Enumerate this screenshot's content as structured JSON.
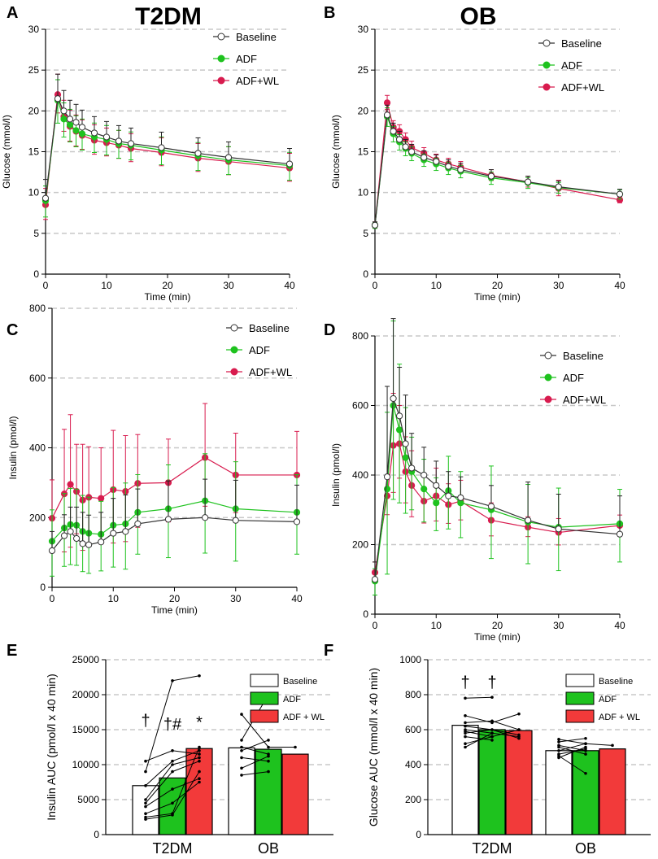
{
  "colors": {
    "baseline": "#ffffff",
    "adf": "#1ec21e",
    "adfwl": "#d81b4e",
    "adfwl_bar": "#f23a3a",
    "grid": "#c8c8c8",
    "axis": "#000000",
    "baseline_err": "#222222",
    "adf_err": "#1ec21e",
    "adfwl_err": "#d81b4e"
  },
  "chart_data": [
    {
      "panel": "A",
      "type": "line",
      "title": "T2DM",
      "xlabel": "Time (min)",
      "ylabel": "Glucose (mmol/l)",
      "xlim": [
        0,
        40
      ],
      "ylim": [
        0,
        30
      ],
      "xticks": [
        "0",
        "10",
        "20",
        "30",
        "40"
      ],
      "yticks": [
        "0",
        "5",
        "10",
        "15",
        "20",
        "25",
        "30"
      ],
      "legend": [
        "Baseline",
        "ADF",
        "ADF+WL"
      ],
      "x": [
        0,
        2,
        3,
        4,
        5,
        6,
        8,
        10,
        12,
        14,
        19,
        25,
        30,
        40
      ],
      "series": [
        {
          "name": "Baseline",
          "values": [
            9.3,
            21.5,
            20.0,
            19.0,
            18.6,
            18.0,
            17.3,
            16.8,
            16.3,
            16.0,
            15.5,
            14.8,
            14.3,
            13.5
          ],
          "err": [
            2.3,
            3.0,
            2.5,
            2.3,
            2.2,
            2.1,
            2.0,
            1.9,
            1.9,
            1.9,
            1.9,
            1.9,
            1.9,
            1.9
          ]
        },
        {
          "name": "ADF",
          "values": [
            9.0,
            21.3,
            19.0,
            18.3,
            17.6,
            17.2,
            16.8,
            16.5,
            16.0,
            15.8,
            15.2,
            14.5,
            14.0,
            13.3
          ],
          "err": [
            2.0,
            2.8,
            2.2,
            2.1,
            2.0,
            2.0,
            1.9,
            1.9,
            1.8,
            1.8,
            1.8,
            1.8,
            1.8,
            1.8
          ]
        },
        {
          "name": "ADF+WL",
          "values": [
            8.5,
            22.0,
            19.3,
            18.1,
            17.5,
            17.0,
            16.4,
            16.1,
            15.8,
            15.4,
            14.9,
            14.2,
            13.8,
            13.0
          ],
          "err": [
            2.0,
            2.5,
            2.0,
            2.0,
            2.0,
            1.9,
            1.9,
            1.8,
            1.8,
            1.8,
            1.8,
            1.8,
            1.8,
            1.8
          ]
        }
      ]
    },
    {
      "panel": "B",
      "type": "line",
      "title": "OB",
      "xlabel": "Time (min)",
      "ylabel": "Glucose (mmol/l)",
      "xlim": [
        0,
        40
      ],
      "ylim": [
        0,
        30
      ],
      "xticks": [
        "0",
        "10",
        "20",
        "30",
        "40"
      ],
      "yticks": [
        "0",
        "5",
        "10",
        "15",
        "20",
        "25",
        "30"
      ],
      "legend": [
        "Baseline",
        "ADF",
        "ADF+WL"
      ],
      "x": [
        0,
        2,
        3,
        4,
        5,
        6,
        8,
        10,
        12,
        14,
        19,
        25,
        30,
        40
      ],
      "series": [
        {
          "name": "Baseline",
          "values": [
            6.0,
            19.5,
            17.5,
            16.5,
            15.6,
            15.0,
            14.3,
            13.8,
            13.2,
            12.8,
            12.0,
            11.3,
            10.7,
            9.8
          ],
          "err": [
            0.4,
            1.2,
            1.0,
            1.0,
            0.9,
            0.9,
            0.8,
            0.8,
            0.8,
            0.8,
            0.8,
            0.7,
            0.7,
            0.6
          ]
        },
        {
          "name": "ADF",
          "values": [
            6.0,
            19.3,
            17.2,
            16.2,
            15.4,
            14.8,
            14.0,
            13.5,
            13.0,
            12.6,
            11.8,
            11.2,
            10.6,
            9.8
          ],
          "err": [
            0.4,
            1.2,
            1.0,
            1.0,
            0.9,
            0.9,
            0.8,
            0.8,
            0.8,
            0.8,
            0.8,
            0.7,
            0.7,
            0.6
          ]
        },
        {
          "name": "ADF+WL",
          "values": [
            6.0,
            21.0,
            18.0,
            17.5,
            16.5,
            15.5,
            14.8,
            14.0,
            13.5,
            13.1,
            12.1,
            11.3,
            10.5,
            9.1
          ],
          "err": [
            0.4,
            0.9,
            0.8,
            0.8,
            0.8,
            0.8,
            0.7,
            0.7,
            0.7,
            0.7,
            0.7,
            0.7,
            1.0,
            0.4
          ]
        }
      ]
    },
    {
      "panel": "C",
      "type": "line",
      "title": "",
      "xlabel": "Time (min)",
      "ylabel": "Insulin (pmol/l)",
      "xlim": [
        0,
        40
      ],
      "ylim": [
        0,
        800
      ],
      "xticks": [
        "0",
        "10",
        "20",
        "30",
        "40"
      ],
      "yticks": [
        "0",
        "200",
        "400",
        "600",
        "800"
      ],
      "legend": [
        "Baseline",
        "ADF",
        "ADF+WL"
      ],
      "x": [
        0,
        2,
        3,
        4,
        5,
        6,
        8,
        10,
        12,
        14,
        19,
        25,
        30,
        40
      ],
      "series": [
        {
          "name": "Baseline",
          "values": [
            105,
            148,
            160,
            140,
            125,
            122,
            130,
            155,
            160,
            182,
            195,
            200,
            192,
            188
          ],
          "err": [
            55,
            60,
            70,
            90,
            90,
            85,
            85,
            100,
            105,
            100,
            110,
            110,
            115,
            105
          ]
        },
        {
          "name": "ADF",
          "values": [
            132,
            170,
            180,
            178,
            160,
            155,
            152,
            178,
            182,
            215,
            225,
            248,
            225,
            215
          ],
          "err": [
            100,
            110,
            115,
            115,
            115,
            115,
            105,
            120,
            130,
            120,
            140,
            150,
            150,
            120
          ]
        },
        {
          "name": "ADF+WL",
          "values": [
            198,
            268,
            295,
            275,
            250,
            258,
            255,
            280,
            275,
            298,
            300,
            372,
            322,
            322
          ],
          "err": [
            110,
            185,
            200,
            135,
            160,
            145,
            145,
            170,
            160,
            140,
            125,
            155,
            120,
            125
          ]
        }
      ]
    },
    {
      "panel": "D",
      "type": "line",
      "title": "",
      "xlabel": "Time (min)",
      "ylabel": "Insulin (pmol/l)",
      "xlim": [
        0,
        40
      ],
      "ylim": [
        0,
        800
      ],
      "xticks": [
        "0",
        "10",
        "20",
        "30",
        "40"
      ],
      "yticks": [
        "0",
        "200",
        "400",
        "600",
        "800"
      ],
      "legend": [
        "Baseline",
        "ADF",
        "ADF+WL"
      ],
      "x": [
        0,
        2,
        3,
        4,
        5,
        6,
        8,
        10,
        12,
        14,
        19,
        25,
        30,
        40
      ],
      "series": [
        {
          "name": "Baseline",
          "values": [
            100,
            395,
            620,
            570,
            490,
            420,
            400,
            370,
            340,
            335,
            310,
            270,
            245,
            230
          ],
          "err": [
            50,
            260,
            230,
            140,
            140,
            100,
            80,
            70,
            70,
            60,
            60,
            110,
            100,
            110
          ]
        },
        {
          "name": "ADF",
          "values": [
            95,
            360,
            600,
            530,
            450,
            410,
            360,
            320,
            355,
            320,
            300,
            265,
            250,
            260
          ],
          "err": [
            40,
            245,
            270,
            210,
            160,
            110,
            95,
            80,
            110,
            100,
            140,
            120,
            125,
            110
          ]
        },
        {
          "name": "ADF+WL",
          "values": [
            120,
            340,
            485,
            490,
            410,
            370,
            325,
            340,
            315,
            325,
            270,
            250,
            235,
            255
          ],
          "err": [
            30,
            60,
            150,
            110,
            100,
            100,
            70,
            80,
            60,
            60,
            50,
            30,
            40,
            30
          ]
        }
      ]
    },
    {
      "panel": "E",
      "type": "bar",
      "title": "",
      "xlabel": "",
      "ylabel": "Insulin AUC (pmol/l x 40 min)",
      "ylim": [
        0,
        25000
      ],
      "yticks": [
        "0",
        "5000",
        "10000",
        "15000",
        "20000",
        "25000"
      ],
      "categories": [
        "T2DM",
        "OB"
      ],
      "legend": [
        "Baseline",
        "ADF",
        "ADF + WL"
      ],
      "series": [
        {
          "name": "Baseline",
          "values": [
            7000,
            12400
          ]
        },
        {
          "name": "ADF",
          "values": [
            8100,
            12200
          ]
        },
        {
          "name": "ADF + WL",
          "values": [
            12300,
            11500
          ]
        }
      ],
      "annotations": [
        {
          "group": 0,
          "bar": 0,
          "y": 15500,
          "text": "†"
        },
        {
          "group": 0,
          "bar": 1,
          "y": 15000,
          "text": "†#"
        },
        {
          "group": 0,
          "bar": 2,
          "y": 15300,
          "text": "*"
        }
      ],
      "individuals": [
        {
          "group": 0,
          "lines": [
            [
              9000,
              22000,
              22700
            ],
            [
              10500,
              12000,
              11500
            ],
            [
              7000,
              10500,
              12000
            ],
            [
              5000,
              10000,
              11000
            ],
            [
              4500,
              9000,
              10500
            ],
            [
              4000,
              6500,
              8000
            ],
            [
              3000,
              4500,
              7500
            ],
            [
              2500,
              3000,
              12500
            ],
            [
              2200,
              2800,
              9000
            ]
          ]
        },
        {
          "group": 1,
          "lines": [
            [
              17200,
              12500,
              12500
            ],
            [
              13500,
              20000,
              0
            ],
            [
              12500,
              11500,
              0
            ],
            [
              11000,
              10500,
              0
            ],
            [
              9500,
              11200,
              0
            ],
            [
              8500,
              9000,
              0
            ],
            [
              12000,
              13500,
              0
            ]
          ]
        }
      ]
    },
    {
      "panel": "F",
      "type": "bar",
      "title": "",
      "xlabel": "",
      "ylabel": "Glucose AUC (mmol/l x 40 min)",
      "ylim": [
        0,
        1000
      ],
      "yticks": [
        "0",
        "200",
        "400",
        "600",
        "800",
        "1000"
      ],
      "categories": [
        "T2DM",
        "OB"
      ],
      "legend": [
        "Baseline",
        "ADF",
        "ADF + WL"
      ],
      "series": [
        {
          "name": "Baseline",
          "values": [
            625,
            480
          ]
        },
        {
          "name": "ADF",
          "values": [
            600,
            480
          ]
        },
        {
          "name": "ADF + WL",
          "values": [
            595,
            490
          ]
        }
      ],
      "annotations": [
        {
          "group": 0,
          "bar": 0,
          "y": 840,
          "text": "†"
        },
        {
          "group": 0,
          "bar": 1,
          "y": 840,
          "text": "†"
        }
      ],
      "individuals": [
        {
          "group": 0,
          "lines": [
            [
              780,
              785,
              0
            ],
            [
              680,
              640,
              690
            ],
            [
              640,
              650,
              600
            ],
            [
              620,
              600,
              570
            ],
            [
              600,
              580,
              560
            ],
            [
              590,
              560,
              600
            ],
            [
              580,
              600,
              550
            ],
            [
              560,
              540,
              0
            ],
            [
              520,
              560,
              0
            ],
            [
              500,
              580,
              0
            ]
          ]
        },
        {
          "group": 1,
          "lines": [
            [
              545,
              520,
              510
            ],
            [
              530,
              550,
              0
            ],
            [
              510,
              480,
              0
            ],
            [
              500,
              460,
              0
            ],
            [
              480,
              520,
              0
            ],
            [
              460,
              490,
              0
            ],
            [
              450,
              350,
              0
            ],
            [
              440,
              500,
              0
            ]
          ]
        }
      ]
    }
  ]
}
